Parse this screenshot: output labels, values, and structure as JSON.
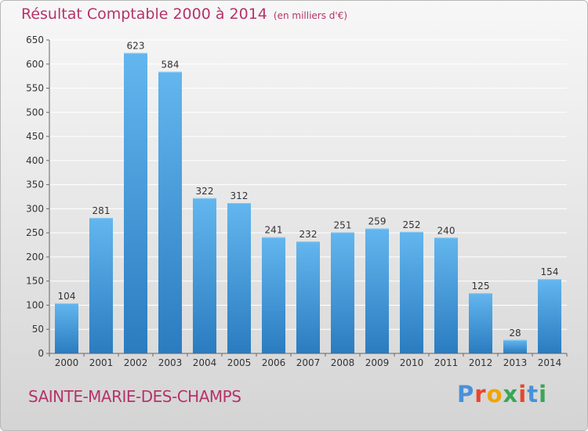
{
  "header": {
    "title": "Résultat Comptable 2000 à 2014",
    "unit": "(en milliers d'€)"
  },
  "footer": {
    "commune": "SAINTE-MARIE-DES-CHAMPS",
    "logo_text": "Proxiti",
    "logo_colors": [
      "#4a90d9",
      "#e8462b",
      "#f0a500",
      "#3aa655",
      "#e8462b",
      "#4a90d9",
      "#3aa655"
    ]
  },
  "colors": {
    "title": "#b5336a",
    "bar_light": "#63b6ee",
    "bar_dark": "#2a7cc0",
    "grid": "#ffffff",
    "axis_text": "#333333"
  },
  "chart_data": {
    "type": "bar",
    "title": "Résultat Comptable 2000 à 2014",
    "subtitle": "(en milliers d'€)",
    "categories": [
      "2000",
      "2001",
      "2002",
      "2003",
      "2004",
      "2005",
      "2006",
      "2007",
      "2008",
      "2009",
      "2010",
      "2011",
      "2012",
      "2013",
      "2014"
    ],
    "values": [
      104,
      281,
      623,
      584,
      322,
      312,
      241,
      232,
      251,
      259,
      252,
      240,
      125,
      28,
      154
    ],
    "ylim": [
      0,
      650
    ],
    "yticks": [
      0,
      50,
      100,
      150,
      200,
      250,
      300,
      350,
      400,
      450,
      500,
      550,
      600,
      650
    ],
    "grid": true,
    "xlabel": "",
    "ylabel": ""
  }
}
